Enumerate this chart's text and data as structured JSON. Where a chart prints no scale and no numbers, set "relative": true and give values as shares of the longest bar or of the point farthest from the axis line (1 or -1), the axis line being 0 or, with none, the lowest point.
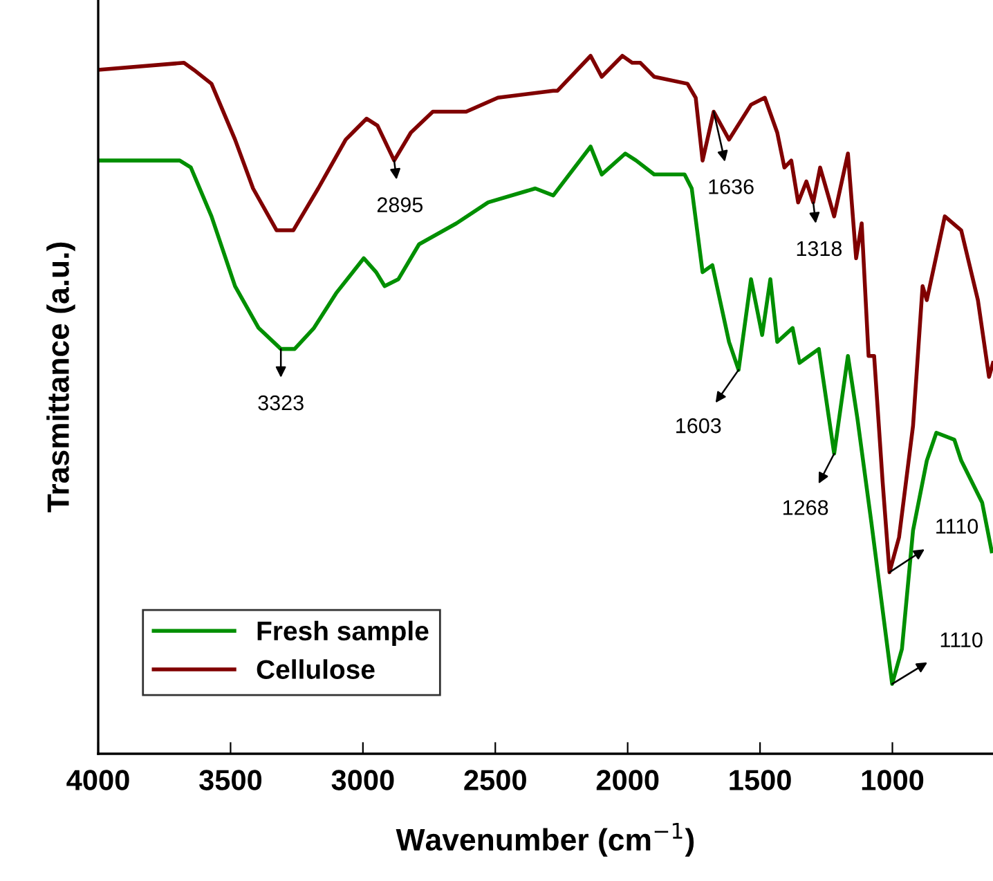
{
  "chart_data": {
    "type": "line",
    "xlabel": "Wavenumber (cm$^{−1}$)",
    "ylabel": "Trasmittance (a.u.)",
    "relative": true,
    "xlim": [
      4000,
      620
    ],
    "xticks": [
      4000,
      3500,
      3000,
      2500,
      2000,
      1500,
      1000
    ],
    "grid": false,
    "legend": "bottom left",
    "marker": "none",
    "line_style": "solid",
    "series": [
      {
        "name": "Fresh sample",
        "color": "#008f00",
        "x": [
          4000,
          3692,
          3650,
          3572,
          3483,
          3394,
          3310,
          3258,
          3185,
          3101,
          2997,
          2950,
          2918,
          2866,
          2788,
          2647,
          2527,
          2349,
          2281,
          2140,
          2098,
          2009,
          1968,
          1900,
          1785,
          1758,
          1717,
          1680,
          1617,
          1581,
          1534,
          1492,
          1461,
          1435,
          1377,
          1351,
          1278,
          1220,
          1168,
          1132,
          1079,
          1001,
          964,
          922,
          870,
          834,
          766,
          740,
          661,
          625
        ],
        "values": [
          0.85,
          0.85,
          0.84,
          0.77,
          0.67,
          0.61,
          0.58,
          0.58,
          0.61,
          0.66,
          0.71,
          0.69,
          0.67,
          0.68,
          0.73,
          0.76,
          0.79,
          0.81,
          0.8,
          0.87,
          0.83,
          0.86,
          0.85,
          0.83,
          0.83,
          0.81,
          0.69,
          0.7,
          0.59,
          0.55,
          0.68,
          0.6,
          0.68,
          0.59,
          0.61,
          0.56,
          0.58,
          0.43,
          0.57,
          0.48,
          0.33,
          0.1,
          0.15,
          0.32,
          0.42,
          0.46,
          0.45,
          0.42,
          0.36,
          0.29
        ]
      },
      {
        "name": "Cellulose",
        "color": "#800000",
        "x": [
          4000,
          3676,
          3639,
          3572,
          3483,
          3415,
          3326,
          3263,
          3169,
          3065,
          2986,
          2945,
          2882,
          2819,
          2736,
          2610,
          2490,
          2281,
          2265,
          2140,
          2098,
          2020,
          1983,
          1952,
          1900,
          1774,
          1743,
          1717,
          1675,
          1617,
          1534,
          1482,
          1435,
          1408,
          1382,
          1356,
          1325,
          1299,
          1273,
          1220,
          1168,
          1137,
          1116,
          1090,
          1069,
          1037,
          1011,
          975,
          922,
          886,
          870,
          802,
          740,
          677,
          635,
          620
        ],
        "values": [
          0.98,
          0.99,
          0.98,
          0.96,
          0.88,
          0.81,
          0.75,
          0.75,
          0.81,
          0.88,
          0.91,
          0.9,
          0.85,
          0.89,
          0.92,
          0.92,
          0.94,
          0.95,
          0.95,
          1.0,
          0.97,
          1.0,
          0.99,
          0.99,
          0.97,
          0.96,
          0.94,
          0.85,
          0.92,
          0.88,
          0.93,
          0.94,
          0.89,
          0.84,
          0.85,
          0.79,
          0.82,
          0.79,
          0.84,
          0.77,
          0.86,
          0.71,
          0.76,
          0.57,
          0.57,
          0.39,
          0.26,
          0.31,
          0.47,
          0.67,
          0.65,
          0.77,
          0.75,
          0.65,
          0.54,
          0.56
        ]
      }
    ],
    "annotations": [
      {
        "text": "2895",
        "x": 2882,
        "y": 0.85
      },
      {
        "text": "3323",
        "x": 3310,
        "y": 0.58
      },
      {
        "text": "1636",
        "x": 1675,
        "y": 0.92
      },
      {
        "text": "1318",
        "x": 1299,
        "y": 0.79
      },
      {
        "text": "1603",
        "x": 1581,
        "y": 0.55
      },
      {
        "text": "1268",
        "x": 1220,
        "y": 0.43
      },
      {
        "text": "1110",
        "x": 1011,
        "y": 0.26
      },
      {
        "text": "1110",
        "x": 1001,
        "y": 0.1
      }
    ]
  }
}
